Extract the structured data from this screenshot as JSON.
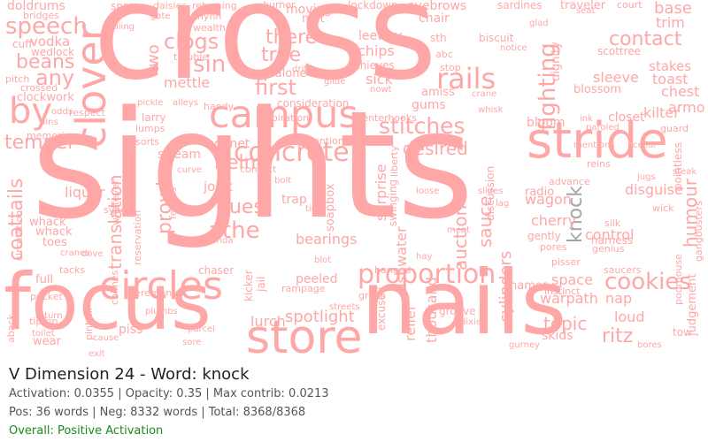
{
  "header": {
    "title": "V Dimension 24 - Word: knock",
    "stats_line": "Activation: 0.0355 | Opacity: 0.35 | Max contrib: 0.0213",
    "count_line": "Pos: 36 words | Neg: 8332 words | Total: 8368/8368",
    "overall_line": "Overall: Positive Activation"
  },
  "colors": {
    "word": "#ffa7a7",
    "highlight": "#a5a5a5",
    "overall": "#1a8a1a",
    "title": "#222222",
    "muted": "#555555"
  },
  "cloud": {
    "words": [
      "cross",
      "sights",
      "nails",
      "focus",
      "stride",
      "store",
      "campus",
      "clover",
      "circles",
      "by",
      "concrete",
      "proportion",
      "stitches",
      "speech",
      "beans",
      "any",
      "contact",
      "clogs",
      "sin",
      "rails",
      "fighting",
      "there",
      "true",
      "first",
      "mettle",
      "temper",
      "coattails",
      "liquor",
      "helm",
      "prowl",
      "dues",
      "athe",
      "joint",
      "translation",
      "desired",
      "auction",
      "sauce",
      "humour",
      "cookies",
      "control",
      "knock",
      "spotlight",
      "lurch",
      "bearings",
      "trap",
      "surprise",
      "dishwater",
      "thousand",
      "relief",
      "topic",
      "ritz",
      "loud",
      "nap",
      "warpath",
      "space",
      "wagon",
      "cherry",
      "radio",
      "skids",
      "cylinders",
      "names",
      "disguise",
      "kilter",
      "chest",
      "armo",
      "toast",
      "stakes",
      "sleeve",
      "closet",
      "bloom",
      "gums",
      "chips",
      "sick",
      "leeway",
      "chair",
      "eyebrows",
      "moving",
      "lockdown",
      "base",
      "trim",
      "doldrums",
      "vodka",
      "wedlock",
      "cuff",
      "clockwork",
      "respect",
      "larry",
      "bonnet",
      "stream",
      "peeled",
      "rampage",
      "contention",
      "consideration",
      "malone",
      "two",
      "stop",
      "biscuit",
      "thieves",
      "abc",
      "sth",
      "excused",
      "swinging",
      "whack",
      "toes",
      "full",
      "pocket",
      "tiptop",
      "piss",
      "judgement",
      "chaser",
      "agenda",
      "kicker",
      "jail",
      "streets",
      "groove",
      "fences",
      "reservation",
      "chimes",
      "circulation",
      "memories",
      "crossed",
      "pitch",
      "mat",
      "burner",
      "flynn",
      "daisies",
      "returning",
      "spree",
      "bridges",
      "wealth",
      "respiration",
      "genius",
      "saucers",
      "grabs",
      "reins",
      "advance",
      "guard",
      "gently",
      "pores",
      "silk",
      "wick",
      "instinct",
      "pisser",
      "tacks",
      "ceremony",
      "whatever",
      "sorts",
      "handy",
      "trouble",
      "lumps",
      "context",
      "soapbox",
      "harness",
      "blossom",
      "amiss",
      "tenterhooks",
      "scottree",
      "pointless",
      "paroled",
      "discussion",
      "hanged",
      "liberty",
      "dignity",
      "seat",
      "court",
      "traveler",
      "sardines",
      "glad",
      "notice",
      "sync",
      "whack",
      "gate",
      "skiiing",
      "wear",
      "aback",
      "return",
      "toilet",
      "cause",
      "sore",
      "tow",
      "poorhouse",
      "gangbusters",
      "exit",
      "pinball",
      "plumbs",
      "bores",
      "gurney",
      "nowt",
      "dixie",
      "parcel",
      "ink",
      "mentions",
      "cellar",
      "jugs",
      "steak",
      "lag",
      "slides",
      "meat",
      "loose",
      "hay",
      "blot",
      "dove",
      "cranes",
      "odds",
      "pins",
      "pickle",
      "alleys",
      "curve",
      "bolt",
      "tire",
      "drift",
      "glide",
      "crane",
      "whisk",
      "pouch"
    ]
  }
}
